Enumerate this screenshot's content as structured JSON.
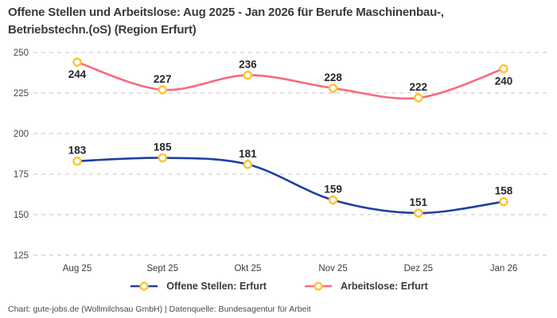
{
  "header": {
    "title_lines": [
      "Offene Stellen und Arbeitslose: Aug 2025 - Jan 2026 für Berufe Maschinenbau-,",
      "Betriebstechn.(oS) (Region Erfurt)"
    ]
  },
  "chart_data": {
    "type": "line",
    "title": "Offene Stellen und Arbeitslose: Aug 2025 - Jan 2026 für Berufe Maschinenbau-, Betriebstechn.(oS) (Region Erfurt)",
    "xlabel": "",
    "ylabel": "",
    "categories": [
      "Aug 25",
      "Sept 25",
      "Okt 25",
      "Nov 25",
      "Dez 25",
      "Jan 26"
    ],
    "series": [
      {
        "name": "Offene Stellen: Erfurt",
        "values": [
          183,
          185,
          181,
          159,
          151,
          158
        ],
        "color": "#1f3fa3",
        "label_positions": [
          "above",
          "above",
          "above",
          "above",
          "above",
          "above"
        ]
      },
      {
        "name": "Arbeitslose: Erfurt",
        "values": [
          244,
          227,
          236,
          228,
          222,
          240
        ],
        "color": "#f9697f",
        "label_positions": [
          "below",
          "above",
          "above",
          "above",
          "above",
          "below"
        ]
      }
    ],
    "marker": {
      "stroke": "#fdc435",
      "fill": "#ffffff"
    },
    "ylim": [
      125,
      250
    ],
    "yticks": [
      125,
      150,
      175,
      200,
      225,
      250
    ],
    "grid": "horizontal-dashed",
    "legend_position": "bottom",
    "colors": {
      "grid": "#cfcfcf",
      "tick_text": "#444444",
      "category_text": "#3a3a3a",
      "data_label": "#262626"
    }
  },
  "footer": {
    "text": "Chart: gute-jobs.de (Wollmilchsau GmbH) | Datenquelle: Bundesagentur für Arbeit"
  }
}
